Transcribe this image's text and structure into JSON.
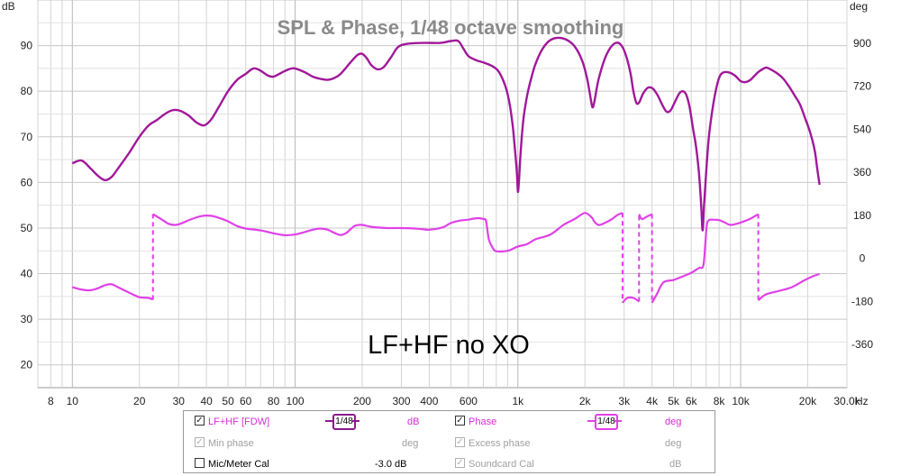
{
  "chart_data": {
    "type": "line",
    "title": "SPL & Phase, 1/48 octave smoothing",
    "annotation": "LF+HF no XO",
    "left_axis": {
      "unit": "dB",
      "range": [
        15,
        100
      ],
      "ticks": [
        20,
        30,
        40,
        50,
        60,
        70,
        80,
        90
      ]
    },
    "right_axis": {
      "unit": "deg",
      "range": [
        -540,
        1080
      ],
      "ticks": [
        "-360",
        "-180",
        "0",
        "180",
        "360",
        "540",
        "720",
        "900"
      ]
    },
    "x_axis": {
      "scale": "log",
      "range": [
        7,
        30000
      ],
      "unit": "Hz",
      "ticks": [
        [
          8,
          "8"
        ],
        [
          10,
          "10"
        ],
        [
          20,
          "20"
        ],
        [
          30,
          "30"
        ],
        [
          40,
          "40"
        ],
        [
          50,
          "50"
        ],
        [
          60,
          "60"
        ],
        [
          80,
          "80"
        ],
        [
          100,
          "100"
        ],
        [
          200,
          "200"
        ],
        [
          300,
          "300"
        ],
        [
          400,
          "400"
        ],
        [
          600,
          "600"
        ],
        [
          1000,
          "1k"
        ],
        [
          2000,
          "2k"
        ],
        [
          3000,
          "3k"
        ],
        [
          4000,
          "4k"
        ],
        [
          5000,
          "5k"
        ],
        [
          6000,
          "6k"
        ],
        [
          8000,
          "8k"
        ],
        [
          10000,
          "10k"
        ],
        [
          20000,
          "20k"
        ],
        [
          30000,
          "30.0k"
        ]
      ]
    },
    "grid": true,
    "series": [
      {
        "name": "LF+HF [FDW]",
        "axis": "left",
        "color": "#a0189a",
        "points": [
          [
            10,
            64.2
          ],
          [
            11,
            64.8
          ],
          [
            12,
            63.2
          ],
          [
            13,
            61.5
          ],
          [
            14,
            60.5
          ],
          [
            15,
            61.2
          ],
          [
            16,
            63
          ],
          [
            18,
            66.5
          ],
          [
            20,
            70
          ],
          [
            22,
            72.5
          ],
          [
            24,
            73.7
          ],
          [
            26,
            75
          ],
          [
            28,
            75.8
          ],
          [
            30,
            75.8
          ],
          [
            33,
            74.8
          ],
          [
            36,
            73.2
          ],
          [
            39,
            72.5
          ],
          [
            42,
            73.8
          ],
          [
            46,
            77
          ],
          [
            50,
            80
          ],
          [
            55,
            82.5
          ],
          [
            60,
            83.8
          ],
          [
            65,
            85
          ],
          [
            70,
            84.5
          ],
          [
            75,
            83.5
          ],
          [
            80,
            83.2
          ],
          [
            88,
            84.2
          ],
          [
            95,
            84.9
          ],
          [
            100,
            85
          ],
          [
            110,
            84.2
          ],
          [
            120,
            83.2
          ],
          [
            130,
            82.7
          ],
          [
            140,
            82.5
          ],
          [
            150,
            82.9
          ],
          [
            160,
            83.8
          ],
          [
            175,
            86
          ],
          [
            190,
            87.9
          ],
          [
            200,
            88.2
          ],
          [
            210,
            87.2
          ],
          [
            220,
            85.7
          ],
          [
            235,
            84.8
          ],
          [
            250,
            85.3
          ],
          [
            270,
            87.5
          ],
          [
            290,
            89.7
          ],
          [
            320,
            90.4
          ],
          [
            380,
            90.6
          ],
          [
            450,
            90.6
          ],
          [
            500,
            91
          ],
          [
            540,
            91
          ],
          [
            570,
            89.3
          ],
          [
            600,
            87.7
          ],
          [
            650,
            86.8
          ],
          [
            700,
            86.3
          ],
          [
            760,
            85.6
          ],
          [
            820,
            84.3
          ],
          [
            880,
            81
          ],
          [
            920,
            77
          ],
          [
            950,
            72
          ],
          [
            975,
            66
          ],
          [
            990,
            62
          ],
          [
            1000,
            58
          ],
          [
            1010,
            60
          ],
          [
            1030,
            67
          ],
          [
            1060,
            74
          ],
          [
            1100,
            79
          ],
          [
            1150,
            83
          ],
          [
            1200,
            86
          ],
          [
            1280,
            89
          ],
          [
            1380,
            91
          ],
          [
            1500,
            91.7
          ],
          [
            1650,
            91.3
          ],
          [
            1800,
            89.8
          ],
          [
            1950,
            86.5
          ],
          [
            2050,
            82.5
          ],
          [
            2120,
            78.5
          ],
          [
            2160,
            76.5
          ],
          [
            2200,
            77.5
          ],
          [
            2300,
            82.5
          ],
          [
            2450,
            87
          ],
          [
            2600,
            89.5
          ],
          [
            2750,
            90.6
          ],
          [
            2900,
            90.2
          ],
          [
            3050,
            88
          ],
          [
            3200,
            84
          ],
          [
            3300,
            80
          ],
          [
            3400,
            77.5
          ],
          [
            3500,
            77.5
          ],
          [
            3650,
            79.5
          ],
          [
            3850,
            80.8
          ],
          [
            4050,
            80.5
          ],
          [
            4250,
            79
          ],
          [
            4450,
            77
          ],
          [
            4650,
            75.5
          ],
          [
            4850,
            75.8
          ],
          [
            5050,
            77.5
          ],
          [
            5300,
            79.5
          ],
          [
            5500,
            80
          ],
          [
            5700,
            79.2
          ],
          [
            5900,
            76.5
          ],
          [
            6100,
            72
          ],
          [
            6300,
            68
          ],
          [
            6500,
            62
          ],
          [
            6650,
            55
          ],
          [
            6750,
            49.5
          ],
          [
            6850,
            55
          ],
          [
            7000,
            62
          ],
          [
            7200,
            70
          ],
          [
            7500,
            76.5
          ],
          [
            7800,
            81
          ],
          [
            8100,
            83.5
          ],
          [
            8500,
            84.2
          ],
          [
            9000,
            84
          ],
          [
            9500,
            83.3
          ],
          [
            10000,
            82.2
          ],
          [
            10500,
            82
          ],
          [
            11000,
            82.4
          ],
          [
            11500,
            83.3
          ],
          [
            12000,
            84.2
          ],
          [
            12500,
            84.8
          ],
          [
            13000,
            85.2
          ],
          [
            13500,
            84.9
          ],
          [
            14500,
            84
          ],
          [
            15500,
            82.8
          ],
          [
            16500,
            81
          ],
          [
            17500,
            79
          ],
          [
            18500,
            77
          ],
          [
            19500,
            74
          ],
          [
            20500,
            71
          ],
          [
            21500,
            67
          ],
          [
            22000,
            63.5
          ],
          [
            22600,
            59.5
          ]
        ]
      },
      {
        "name": "Phase",
        "axis": "right",
        "color": "#e040e8",
        "segments": [
          [
            [
              10,
              -120
            ],
            [
              11,
              -130
            ],
            [
              12,
              -133
            ],
            [
              13,
              -125
            ],
            [
              14,
              -112
            ],
            [
              15,
              -108
            ],
            [
              16,
              -120
            ],
            [
              18,
              -143
            ],
            [
              20,
              -162
            ],
            [
              22,
              -165
            ],
            [
              23,
              -172
            ]
          ],
          [
            [
              23,
              185
            ],
            [
              25,
              165
            ],
            [
              27,
              145
            ],
            [
              29,
              140
            ],
            [
              31,
              147
            ],
            [
              34,
              163
            ],
            [
              38,
              177
            ],
            [
              42,
              178
            ],
            [
              46,
              168
            ],
            [
              50,
              155
            ],
            [
              55,
              135
            ],
            [
              60,
              125
            ],
            [
              70,
              117
            ],
            [
              80,
              105
            ],
            [
              90,
              97
            ],
            [
              100,
              100
            ],
            [
              110,
              110
            ],
            [
              120,
              120
            ],
            [
              130,
              125
            ],
            [
              140,
              120
            ],
            [
              150,
              107
            ],
            [
              160,
              98
            ],
            [
              170,
              107
            ],
            [
              185,
              136
            ],
            [
              200,
              140
            ],
            [
              220,
              132
            ],
            [
              260,
              127
            ],
            [
              300,
              127
            ],
            [
              360,
              124
            ],
            [
              400,
              120
            ],
            [
              460,
              130
            ],
            [
              500,
              148
            ],
            [
              550,
              158
            ],
            [
              600,
              162
            ],
            [
              650,
              168
            ],
            [
              700,
              165
            ],
            [
              720,
              155
            ],
            [
              740,
              80
            ],
            [
              770,
              45
            ],
            [
              800,
              30
            ],
            [
              900,
              32
            ],
            [
              1000,
              50
            ],
            [
              1100,
              60
            ],
            [
              1200,
              80
            ],
            [
              1400,
              100
            ],
            [
              1600,
              140
            ],
            [
              1800,
              165
            ],
            [
              2000,
              190
            ],
            [
              2150,
              170
            ],
            [
              2200,
              155
            ],
            [
              2300,
              140
            ],
            [
              2450,
              148
            ],
            [
              2650,
              165
            ],
            [
              2800,
              182
            ],
            [
              2950,
              190
            ]
          ],
          [
            [
              2950,
              -185
            ],
            [
              3100,
              -165
            ],
            [
              3300,
              -165
            ],
            [
              3500,
              -180
            ]
          ],
          [
            [
              3500,
              185
            ],
            [
              3600,
              165
            ],
            [
              3800,
              175
            ],
            [
              4000,
              185
            ]
          ],
          [
            [
              4000,
              -185
            ],
            [
              4200,
              -150
            ],
            [
              4500,
              -100
            ],
            [
              5000,
              -90
            ],
            [
              5500,
              -75
            ],
            [
              6000,
              -60
            ],
            [
              6500,
              -40
            ],
            [
              6800,
              -30
            ],
            [
              6950,
              70
            ],
            [
              7050,
              140
            ],
            [
              7200,
              160
            ],
            [
              7500,
              162
            ],
            [
              8000,
              160
            ],
            [
              8500,
              150
            ],
            [
              9000,
              140
            ],
            [
              10000,
              150
            ],
            [
              11000,
              165
            ],
            [
              12000,
              185
            ]
          ],
          [
            [
              12000,
              -175
            ],
            [
              13000,
              -150
            ],
            [
              15000,
              -135
            ],
            [
              17000,
              -120
            ],
            [
              19000,
              -95
            ],
            [
              21000,
              -75
            ],
            [
              22600,
              -65
            ]
          ]
        ]
      }
    ]
  },
  "legend": {
    "rows": [
      {
        "left": {
          "label": "LF+HF [FDW]",
          "checked": "✓",
          "smoothing": "1/48",
          "unit": "dB",
          "value": ""
        },
        "right": {
          "label": "Phase",
          "checked": "✓",
          "smoothing": "1/48",
          "unit": "deg",
          "value": ""
        }
      },
      {
        "left": {
          "label": "Min phase",
          "checked": "✓",
          "unit": "deg",
          "value": ""
        },
        "right": {
          "label": "Excess phase",
          "checked": "✓",
          "unit": "deg",
          "value": ""
        }
      },
      {
        "left": {
          "label": "Mic/Meter Cal",
          "checked": "",
          "unit": "",
          "value": "-3.0 dB"
        },
        "right": {
          "label": "Soundcard Cal",
          "checked": "✓",
          "unit": "dB",
          "value": ""
        }
      }
    ]
  }
}
